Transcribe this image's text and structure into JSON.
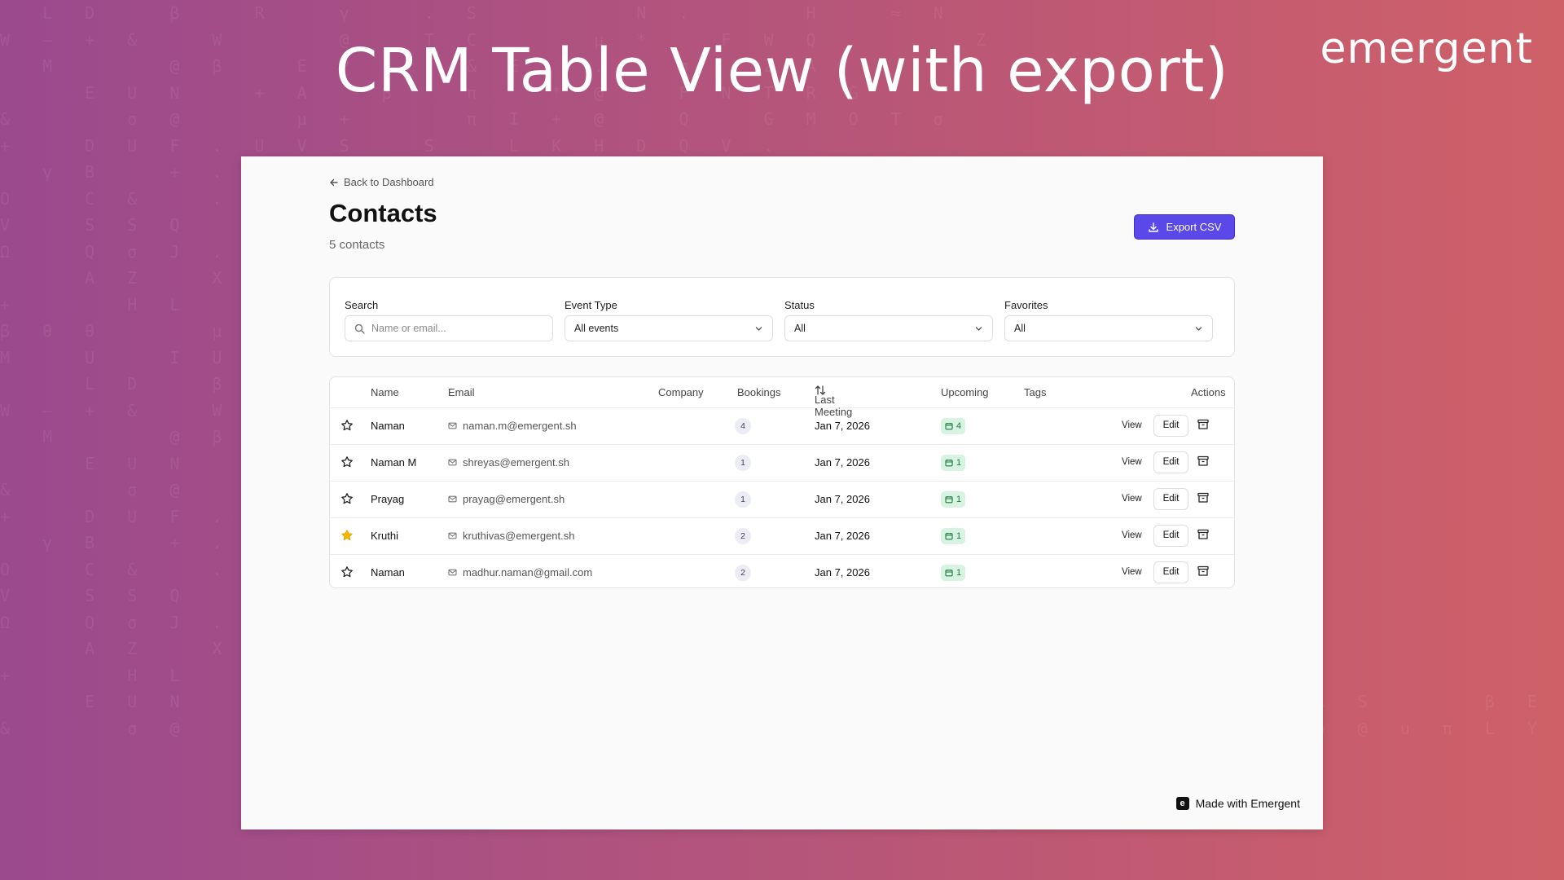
{
  "headline": "CRM Table View (with export)",
  "logo": "emergent",
  "page": {
    "back_label": "Back to Dashboard",
    "title": "Contacts",
    "count": "5 contacts",
    "export_label": "Export CSV",
    "accent_color": "#5b48e8"
  },
  "filters": {
    "search_label": "Search",
    "search_placeholder": "Name or email...",
    "event_type_label": "Event Type",
    "event_type_value": "All events",
    "status_label": "Status",
    "status_value": "All",
    "favorites_label": "Favorites",
    "favorites_value": "All"
  },
  "table": {
    "columns": {
      "name": "Name",
      "email": "Email",
      "company": "Company",
      "bookings": "Bookings",
      "last_meeting": "Last Meeting",
      "upcoming": "Upcoming",
      "tags": "Tags",
      "actions": "Actions"
    },
    "view_label": "View",
    "edit_label": "Edit",
    "rows": [
      {
        "favorite": false,
        "name": "Naman",
        "email": "naman.m@emergent.sh",
        "company": "",
        "bookings": "4",
        "last_meeting": "Jan 7, 2026",
        "upcoming": "4"
      },
      {
        "favorite": false,
        "name": "Naman M",
        "email": "shreyas@emergent.sh",
        "company": "",
        "bookings": "1",
        "last_meeting": "Jan 7, 2026",
        "upcoming": "1"
      },
      {
        "favorite": false,
        "name": "Prayag",
        "email": "prayag@emergent.sh",
        "company": "",
        "bookings": "1",
        "last_meeting": "Jan 7, 2026",
        "upcoming": "1"
      },
      {
        "favorite": true,
        "name": "Kruthi",
        "email": "kruthivas@emergent.sh",
        "company": "",
        "bookings": "2",
        "last_meeting": "Jan 7, 2026",
        "upcoming": "1"
      },
      {
        "favorite": false,
        "name": "Naman",
        "email": "madhur.naman@gmail.com",
        "company": "",
        "bookings": "2",
        "last_meeting": "Jan 7, 2026",
        "upcoming": "1"
      }
    ]
  },
  "footer": {
    "made_with": "Made with Emergent"
  }
}
